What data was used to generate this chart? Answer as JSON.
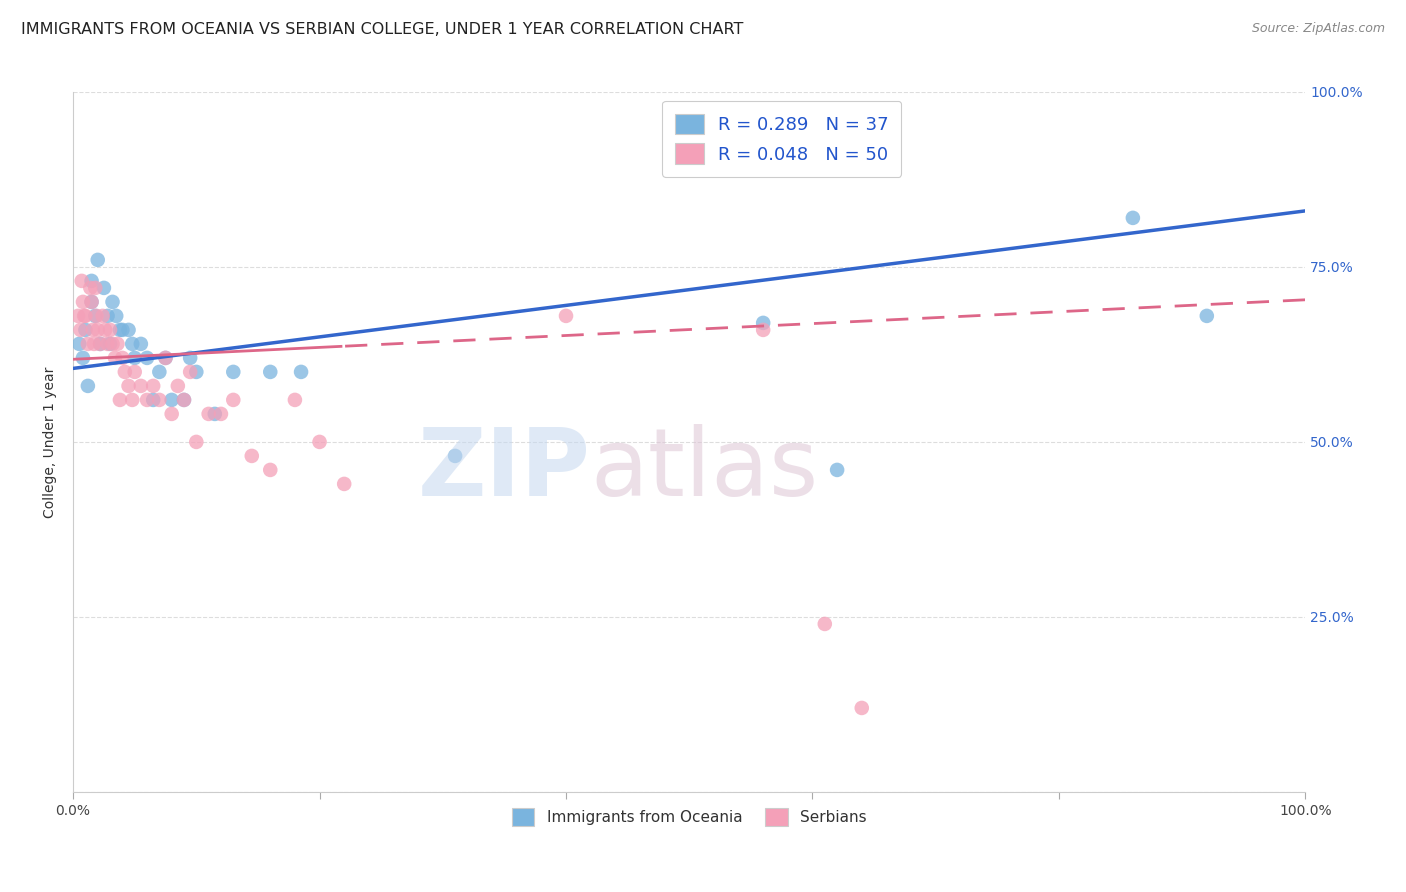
{
  "title": "IMMIGRANTS FROM OCEANIA VS SERBIAN COLLEGE, UNDER 1 YEAR CORRELATION CHART",
  "source": "Source: ZipAtlas.com",
  "ylabel": "College, Under 1 year",
  "xmin": 0.0,
  "xmax": 1.0,
  "ymin": 0.0,
  "ymax": 1.0,
  "blue_R": 0.289,
  "blue_N": 37,
  "pink_R": 0.048,
  "pink_N": 50,
  "blue_color": "#7ab4de",
  "pink_color": "#f4a0b8",
  "blue_line_color": "#3366cc",
  "pink_line_color": "#dd6688",
  "legend_label_blue": "Immigrants from Oceania",
  "legend_label_pink": "Serbians",
  "blue_x": [
    0.005,
    0.008,
    0.01,
    0.012,
    0.015,
    0.015,
    0.018,
    0.02,
    0.022,
    0.025,
    0.028,
    0.03,
    0.032,
    0.035,
    0.038,
    0.04,
    0.045,
    0.048,
    0.05,
    0.055,
    0.06,
    0.065,
    0.07,
    0.075,
    0.08,
    0.09,
    0.095,
    0.1,
    0.115,
    0.13,
    0.16,
    0.185,
    0.31,
    0.56,
    0.62,
    0.86,
    0.92
  ],
  "blue_y": [
    0.64,
    0.62,
    0.66,
    0.58,
    0.73,
    0.7,
    0.68,
    0.76,
    0.64,
    0.72,
    0.68,
    0.64,
    0.7,
    0.68,
    0.66,
    0.66,
    0.66,
    0.64,
    0.62,
    0.64,
    0.62,
    0.56,
    0.6,
    0.62,
    0.56,
    0.56,
    0.62,
    0.6,
    0.54,
    0.6,
    0.6,
    0.6,
    0.48,
    0.67,
    0.46,
    0.82,
    0.68
  ],
  "pink_x": [
    0.004,
    0.006,
    0.007,
    0.008,
    0.009,
    0.01,
    0.012,
    0.014,
    0.015,
    0.016,
    0.017,
    0.018,
    0.019,
    0.02,
    0.022,
    0.024,
    0.026,
    0.028,
    0.03,
    0.032,
    0.034,
    0.036,
    0.038,
    0.04,
    0.042,
    0.045,
    0.048,
    0.05,
    0.055,
    0.06,
    0.065,
    0.07,
    0.075,
    0.08,
    0.085,
    0.09,
    0.095,
    0.1,
    0.11,
    0.12,
    0.13,
    0.145,
    0.16,
    0.18,
    0.2,
    0.22,
    0.4,
    0.56,
    0.61,
    0.64
  ],
  "pink_y": [
    0.68,
    0.66,
    0.73,
    0.7,
    0.68,
    0.68,
    0.64,
    0.72,
    0.7,
    0.66,
    0.64,
    0.72,
    0.68,
    0.66,
    0.64,
    0.68,
    0.66,
    0.64,
    0.66,
    0.64,
    0.62,
    0.64,
    0.56,
    0.62,
    0.6,
    0.58,
    0.56,
    0.6,
    0.58,
    0.56,
    0.58,
    0.56,
    0.62,
    0.54,
    0.58,
    0.56,
    0.6,
    0.5,
    0.54,
    0.54,
    0.56,
    0.48,
    0.46,
    0.56,
    0.5,
    0.44,
    0.68,
    0.66,
    0.24,
    0.12
  ],
  "grid_color": "#dddddd",
  "background_color": "#ffffff",
  "title_fontsize": 11.5,
  "source_fontsize": 9,
  "ylabel_fontsize": 10,
  "legend_fontsize": 13
}
